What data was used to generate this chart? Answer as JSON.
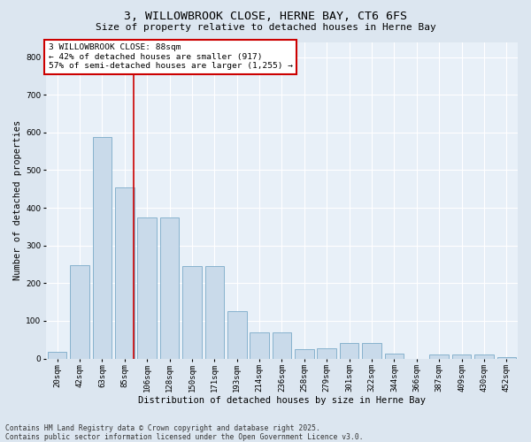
{
  "title": "3, WILLOWBROOK CLOSE, HERNE BAY, CT6 6FS",
  "subtitle": "Size of property relative to detached houses in Herne Bay",
  "xlabel": "Distribution of detached houses by size in Herne Bay",
  "ylabel": "Number of detached properties",
  "categories": [
    "20sqm",
    "42sqm",
    "63sqm",
    "85sqm",
    "106sqm",
    "128sqm",
    "150sqm",
    "171sqm",
    "193sqm",
    "214sqm",
    "236sqm",
    "258sqm",
    "279sqm",
    "301sqm",
    "322sqm",
    "344sqm",
    "366sqm",
    "387sqm",
    "409sqm",
    "430sqm",
    "452sqm"
  ],
  "values": [
    18,
    248,
    588,
    455,
    375,
    375,
    245,
    245,
    125,
    70,
    70,
    25,
    28,
    40,
    40,
    12,
    0,
    10,
    10,
    10,
    4
  ],
  "bar_color": "#c9daea",
  "bar_edge_color": "#7aaac8",
  "vline_color": "#cc0000",
  "vline_x": 3.42,
  "annotation_text": "3 WILLOWBROOK CLOSE: 88sqm\n← 42% of detached houses are smaller (917)\n57% of semi-detached houses are larger (1,255) →",
  "annotation_box_facecolor": "#ffffff",
  "annotation_box_edgecolor": "#cc0000",
  "footnote": "Contains HM Land Registry data © Crown copyright and database right 2025.\nContains public sector information licensed under the Open Government Licence v3.0.",
  "ylim": [
    0,
    840
  ],
  "yticks": [
    0,
    100,
    200,
    300,
    400,
    500,
    600,
    700,
    800
  ],
  "background_color": "#dce6f0",
  "plot_background_color": "#e8f0f8",
  "grid_color": "#ffffff",
  "title_fontsize": 9.5,
  "subtitle_fontsize": 8,
  "axis_label_fontsize": 7.5,
  "tick_fontsize": 6.5,
  "annotation_fontsize": 6.8,
  "footnote_fontsize": 5.8
}
